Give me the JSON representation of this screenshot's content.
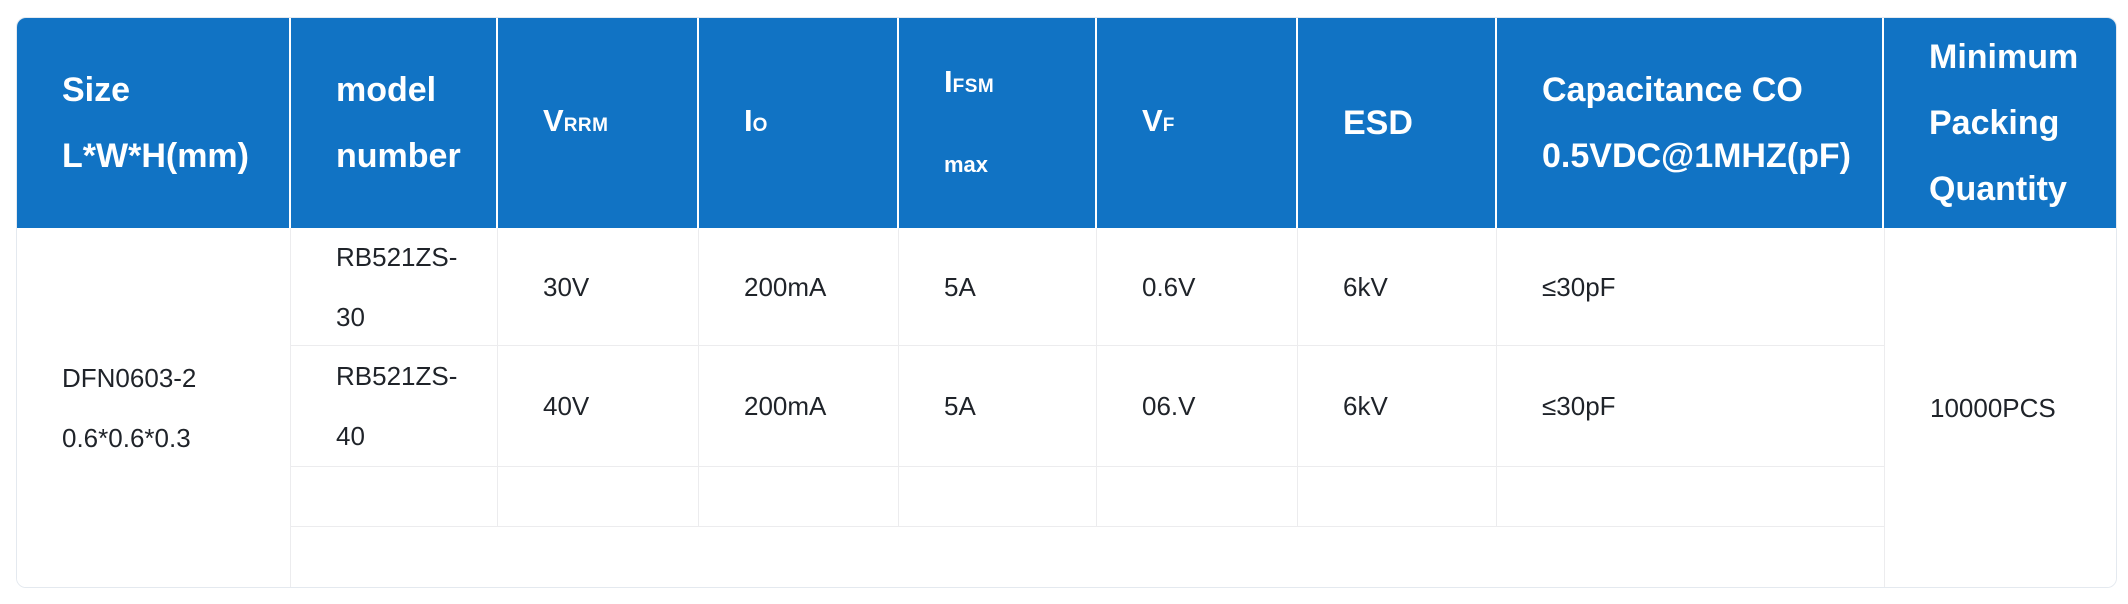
{
  "table": {
    "header": {
      "size": {
        "line1": "Size",
        "line2": "L*W*H(mm)"
      },
      "model": {
        "line1": "model",
        "line2": "number"
      },
      "vrrm": {
        "main": "V",
        "sub": "RRM"
      },
      "io": {
        "main": "I",
        "sub": "O"
      },
      "ifsm": {
        "main": "I",
        "sub": "FSM",
        "line2": "max"
      },
      "vf": {
        "main": "V",
        "sub": "F"
      },
      "esd": "ESD",
      "capacitance": {
        "line1": "Capacitance CO",
        "line2": "0.5VDC@1MHZ(pF)"
      },
      "packing": {
        "line1": "Minimum",
        "line2": "Packing",
        "line3": "Quantity"
      }
    },
    "body": {
      "size": {
        "line1": "DFN0603-2",
        "line2": "0.6*0.6*0.3"
      },
      "rows": [
        {
          "model_line1": "RB521ZS-",
          "model_line2": "30",
          "vrrm": "30V",
          "io": "200mA",
          "ifsm": "5A",
          "vf": "0.6V",
          "esd": "6kV",
          "capacitance": "≤30pF"
        },
        {
          "model_line1": "RB521ZS-",
          "model_line2": "40",
          "vrrm": "40V",
          "io": "200mA",
          "ifsm": "5A",
          "vf": "06.V",
          "esd": "6kV",
          "capacitance": "≤30pF"
        }
      ],
      "packing": "10000PCS"
    },
    "colors": {
      "header_background": "#1173c4",
      "header_text": "#ffffff",
      "body_text": "#1f2329",
      "grid_line": "#ececee",
      "outer_border": "#e4e9ef"
    }
  }
}
